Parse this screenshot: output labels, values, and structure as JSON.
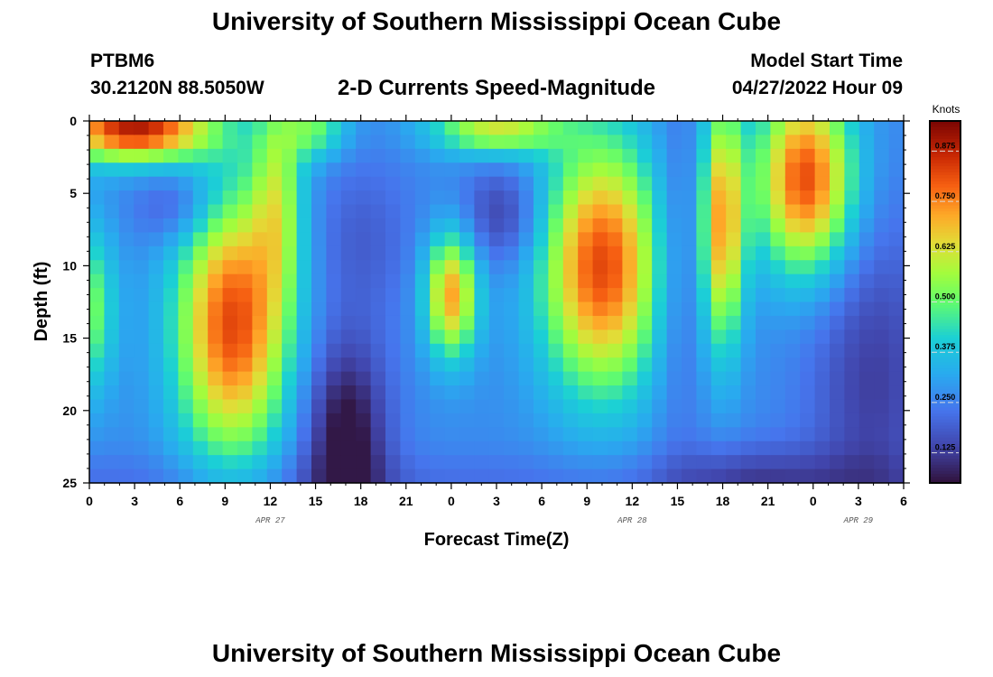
{
  "header": {
    "title": "University of Southern Mississippi Ocean Cube",
    "station": "PTBM6",
    "coords": "30.2120N  88.5050W",
    "subtitle": "2-D Currents Speed-Magnitude",
    "model_start_label": "Model Start Time",
    "model_start_value": "04/27/2022 Hour 09"
  },
  "footer": {
    "title": "University of Southern Mississippi Ocean Cube"
  },
  "chart_data": {
    "type": "heatmap",
    "title": "2-D Currents Speed-Magnitude",
    "xlabel": "Forecast Time(Z)",
    "ylabel": "Depth (ft)",
    "x_range_hours": [
      0,
      54
    ],
    "x_ticks": [
      {
        "hour": 0,
        "label": "0"
      },
      {
        "hour": 3,
        "label": "3"
      },
      {
        "hour": 6,
        "label": "6"
      },
      {
        "hour": 9,
        "label": "9"
      },
      {
        "hour": 12,
        "label": "12"
      },
      {
        "hour": 15,
        "label": "15"
      },
      {
        "hour": 18,
        "label": "18"
      },
      {
        "hour": 21,
        "label": "21"
      },
      {
        "hour": 24,
        "label": "0"
      },
      {
        "hour": 27,
        "label": "3"
      },
      {
        "hour": 30,
        "label": "6"
      },
      {
        "hour": 33,
        "label": "9"
      },
      {
        "hour": 36,
        "label": "12"
      },
      {
        "hour": 39,
        "label": "15"
      },
      {
        "hour": 42,
        "label": "18"
      },
      {
        "hour": 45,
        "label": "21"
      },
      {
        "hour": 48,
        "label": "0"
      },
      {
        "hour": 51,
        "label": "3"
      },
      {
        "hour": 54,
        "label": "6"
      }
    ],
    "date_labels": [
      {
        "hour": 12,
        "label": "APR 27"
      },
      {
        "hour": 36,
        "label": "APR 28"
      },
      {
        "hour": 51,
        "label": "APR 29"
      }
    ],
    "y_range_ft": [
      0,
      25
    ],
    "y_ticks": [
      0,
      5,
      10,
      15,
      20,
      25
    ],
    "colorbar": {
      "unit": "Knots",
      "range": [
        0.05,
        0.95
      ],
      "ticks": [
        "0.875",
        "0.750",
        "0.625",
        "0.500",
        "0.375",
        "0.250",
        "0.125"
      ],
      "tick_values": [
        0.875,
        0.75,
        0.625,
        0.5,
        0.375,
        0.25,
        0.125
      ]
    },
    "resolution": {
      "cols": 55,
      "rows": 26
    },
    "field_description_points": [
      {
        "hour": 1,
        "depth": 1,
        "speed": 0.9
      },
      {
        "hour": 9,
        "depth": 14,
        "speed": 0.78
      },
      {
        "hour": 17,
        "depth": 22,
        "speed": 0.08
      },
      {
        "hour": 27,
        "depth": 7,
        "speed": 0.14
      },
      {
        "hour": 35,
        "depth": 10,
        "speed": 0.82
      },
      {
        "hour": 48,
        "depth": 4,
        "speed": 0.8
      },
      {
        "hour": 52,
        "depth": 22,
        "speed": 0.12
      }
    ]
  }
}
